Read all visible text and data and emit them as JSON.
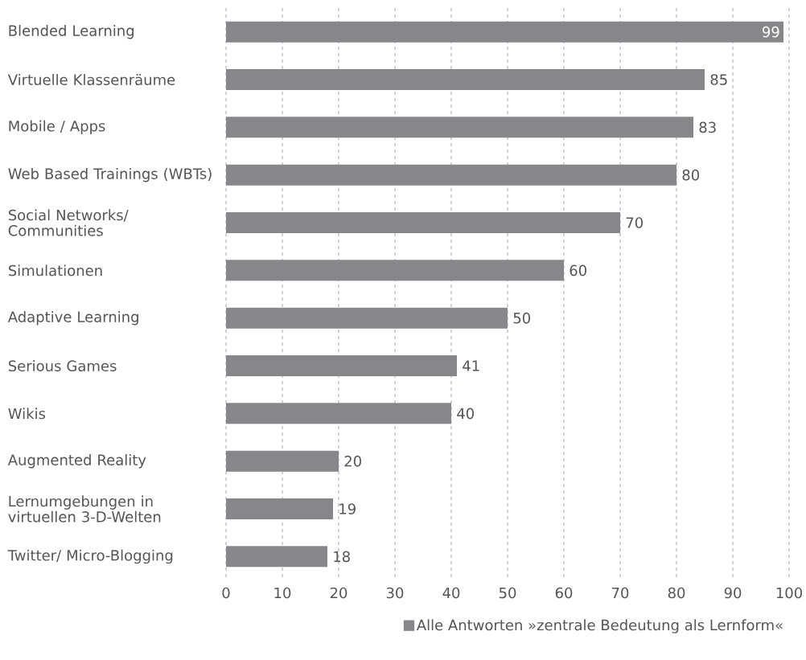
{
  "chart_data": {
    "type": "bar",
    "orientation": "horizontal",
    "categories": [
      "Blended Learning",
      "Virtuelle Klassenräume",
      "Mobile / Apps",
      "Web Based Trainings (WBTs)",
      "Social Networks/ Communities",
      "Simulationen",
      "Adaptive Learning",
      "Serious Games",
      "Wikis",
      "Augmented Reality",
      "Lernumgebungen in virtuellen 3-D-Welten",
      "Twitter/ Micro-Blogging"
    ],
    "series": [
      {
        "name": "Alle Antworten »zentrale Bedeutung als Lernform«",
        "color": "#87868b",
        "values": [
          99,
          85,
          83,
          80,
          70,
          60,
          50,
          41,
          40,
          20,
          19,
          18
        ]
      }
    ],
    "xlim": [
      0,
      100
    ],
    "xticks": [
      0,
      10,
      20,
      30,
      40,
      50,
      60,
      70,
      80,
      90,
      100
    ],
    "grid": "x",
    "legend": "bottom right",
    "data_labels": true
  }
}
